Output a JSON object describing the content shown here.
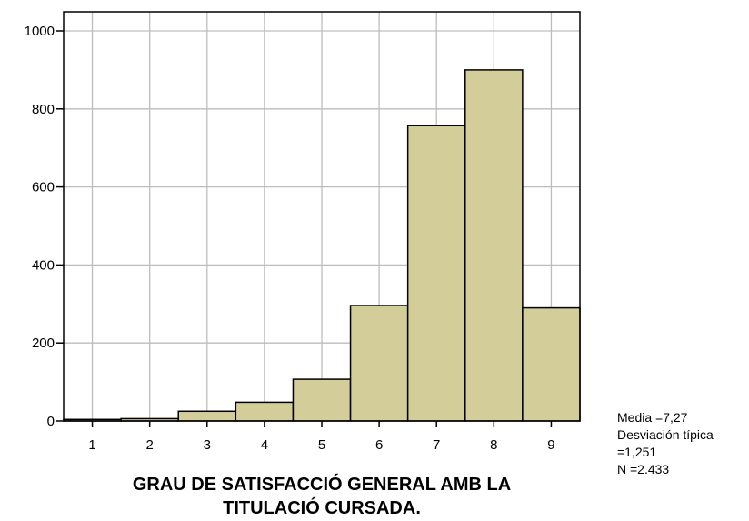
{
  "chart_data": {
    "type": "bar",
    "categories": [
      "1",
      "2",
      "3",
      "4",
      "5",
      "6",
      "7",
      "8",
      "9"
    ],
    "values": [
      4,
      6,
      25,
      48,
      107,
      296,
      757,
      900,
      290
    ],
    "xlabel_lines": [
      "GRAU DE SATISFACCIÓ GENERAL AMB LA",
      "TITULACIÓ CURSADA."
    ],
    "ylabel": "",
    "ylim": [
      0,
      1000
    ],
    "yticks": [
      0,
      200,
      400,
      600,
      800,
      1000
    ],
    "grid": true,
    "bar_color": "#d3cd9a",
    "grid_color": "#bdbdbd"
  },
  "stats": {
    "mean": "Media =7,27",
    "std_label": "Desviación típica",
    "std_value": "=1,251",
    "n": "N =2.433"
  }
}
